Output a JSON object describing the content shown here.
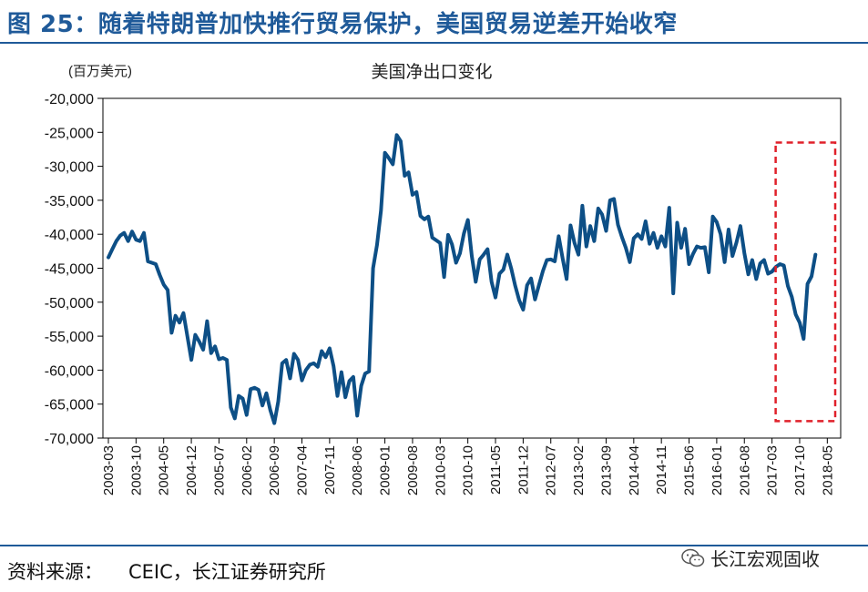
{
  "figure_title": "图 25：随着特朗普加快推行贸易保护，美国贸易逆差开始收窄",
  "source": {
    "label": "资料来源：",
    "text": "CEIC，长江证券研究所"
  },
  "watermark": {
    "text": "长江宏观固收",
    "icon": "wechat-icon"
  },
  "colors": {
    "accent": "#1f5a99",
    "series": "#0d4f86",
    "highlight_box": "#e0202a"
  },
  "chart_data": {
    "type": "line",
    "title": "美国净出口变化",
    "unit_label": "(百万美元)",
    "xlabel": "",
    "ylabel": "",
    "ylim": [
      -70000,
      -20000
    ],
    "yticks": [
      -20000,
      -25000,
      -30000,
      -35000,
      -40000,
      -45000,
      -50000,
      -55000,
      -60000,
      -65000,
      -70000
    ],
    "ytick_labels": [
      "-20,000",
      "-25,000",
      "-30,000",
      "-35,000",
      "-40,000",
      "-45,000",
      "-50,000",
      "-55,000",
      "-60,000",
      "-65,000",
      "-70,000"
    ],
    "xtick_labels": [
      "2003-03",
      "2003-10",
      "2004-05",
      "2004-12",
      "2005-07",
      "2006-02",
      "2006-09",
      "2007-04",
      "2007-11",
      "2008-06",
      "2009-01",
      "2009-08",
      "2010-03",
      "2010-10",
      "2011-05",
      "2011-12",
      "2012-07",
      "2013-02",
      "2013-09",
      "2014-04",
      "2014-11",
      "2015-06",
      "2016-01",
      "2016-08",
      "2017-03",
      "2017-10",
      "2018-05"
    ],
    "x_start": "2003-03",
    "x_end": "2018-07",
    "grid": false,
    "legend": "none",
    "highlight_range": {
      "from": "2017-03",
      "to": "2018-07",
      "y_from": -67500,
      "y_to": -26500
    },
    "series": [
      {
        "name": "",
        "values": [
          -43400,
          -42200,
          -41000,
          -40200,
          -39800,
          -41000,
          -39600,
          -40800,
          -41000,
          -39800,
          -44000,
          -44200,
          -44400,
          -46000,
          -47400,
          -48200,
          -54500,
          -52000,
          -53000,
          -51600,
          -55000,
          -58500,
          -54800,
          -55800,
          -57000,
          -52800,
          -57500,
          -56500,
          -58400,
          -58200,
          -58500,
          -65500,
          -67100,
          -63800,
          -64200,
          -66600,
          -62800,
          -62600,
          -62900,
          -65200,
          -63400,
          -65900,
          -67800,
          -64600,
          -59000,
          -58500,
          -61200,
          -57600,
          -58500,
          -61500,
          -60000,
          -59200,
          -59000,
          -59500,
          -57200,
          -58100,
          -56800,
          -59400,
          -63800,
          -60300,
          -64000,
          -61600,
          -61000,
          -66700,
          -62300,
          -60500,
          -60200,
          -45000,
          -41600,
          -36500,
          -28000,
          -28800,
          -29700,
          -25400,
          -26300,
          -31400,
          -30900,
          -34200,
          -33800,
          -37300,
          -37800,
          -37400,
          -40500,
          -40900,
          -41300,
          -46300,
          -40100,
          -41500,
          -44200,
          -42800,
          -39900,
          -37900,
          -43200,
          -47000,
          -43700,
          -43000,
          -42200,
          -47000,
          -49300,
          -45800,
          -45200,
          -43000,
          -45100,
          -47600,
          -49700,
          -51100,
          -47500,
          -46500,
          -49600,
          -47500,
          -45400,
          -43800,
          -43700,
          -44000,
          -40300,
          -43600,
          -46600,
          -38700,
          -41300,
          -43000,
          -35800,
          -41800,
          -38800,
          -41000,
          -36200,
          -37100,
          -39500,
          -35000,
          -34800,
          -38600,
          -40400,
          -42000,
          -44100,
          -40600,
          -40000,
          -40700,
          -38100,
          -41400,
          -39800,
          -42000,
          -40300,
          -41800,
          -36100,
          -48700,
          -38300,
          -42000,
          -39200,
          -44400,
          -42900,
          -41800,
          -42000,
          -41900,
          -45600,
          -37400,
          -38200,
          -40000,
          -44100,
          -39300,
          -43200,
          -41200,
          -38800,
          -42800,
          -45900,
          -43800,
          -46600,
          -44300,
          -43800,
          -45800,
          -45500,
          -44800,
          -44400,
          -44600,
          -47600,
          -49200,
          -51800,
          -53000,
          -55400,
          -47300,
          -46200,
          -43000
        ]
      }
    ]
  }
}
